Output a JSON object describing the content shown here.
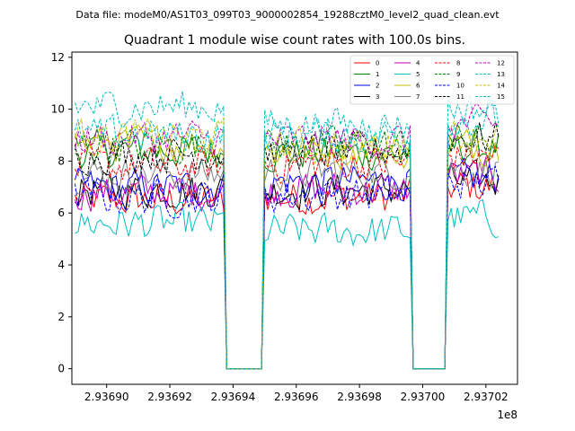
{
  "chart_data": {
    "type": "line",
    "suptitle": "Data file: modeM0/AS1T03_099T03_9000002854_19288cztM0_level2_quad_clean.evt",
    "title": "Quadrant 1 module wise count rates with 100.0s bins.",
    "xlabel": "",
    "ylabel": "",
    "x_offset_label": "1e8",
    "xlim": [
      2.936889,
      2.93703
    ],
    "ylim": [
      -0.6,
      12.2
    ],
    "xticks": [
      2.9369,
      2.93692,
      2.93694,
      2.93696,
      2.93698,
      2.937,
      2.93702
    ],
    "xtick_labels": [
      "2.93690",
      "2.93692",
      "2.93694",
      "2.93696",
      "2.93698",
      "2.93700",
      "2.93702"
    ],
    "yticks": [
      0,
      2,
      4,
      6,
      8,
      10,
      12
    ],
    "ytick_labels": [
      "0",
      "2",
      "4",
      "6",
      "8",
      "10",
      "12"
    ],
    "grid": false,
    "legend_position": "upper right",
    "legend_columns": 4,
    "bin_width_x": 1e-06,
    "segments": [
      {
        "x_start": 2.93689,
        "x_end": 2.936937
      },
      {
        "x_start": 2.93695,
        "x_end": 2.936996
      },
      {
        "x_start": 2.937008,
        "x_end": 2.937024
      }
    ],
    "gaps": [
      {
        "x_start": 2.936938,
        "x_end": 2.936949
      },
      {
        "x_start": 2.936997,
        "x_end": 2.937007
      }
    ],
    "series": [
      {
        "name": "0",
        "color": "#ff0000",
        "dash": "solid",
        "level": [
          6.5,
          6.6,
          7.0
        ]
      },
      {
        "name": "1",
        "color": "#008000",
        "dash": "solid",
        "level": [
          8.4,
          8.3,
          8.5
        ]
      },
      {
        "name": "2",
        "color": "#0000ff",
        "dash": "solid",
        "level": [
          7.0,
          7.2,
          7.3
        ]
      },
      {
        "name": "3",
        "color": "#000000",
        "dash": "solid",
        "level": [
          6.9,
          6.9,
          7.2
        ]
      },
      {
        "name": "4",
        "color": "#bf00bf",
        "dash": "solid",
        "level": [
          6.8,
          6.9,
          7.4
        ]
      },
      {
        "name": "5",
        "color": "#00bfbf",
        "dash": "solid",
        "level": [
          5.6,
          5.3,
          5.8
        ]
      },
      {
        "name": "6",
        "color": "#bfbf00",
        "dash": "solid",
        "level": [
          8.7,
          8.4,
          8.6
        ]
      },
      {
        "name": "7",
        "color": "#808080",
        "dash": "solid",
        "level": [
          7.5,
          7.6,
          7.7
        ]
      },
      {
        "name": "8",
        "color": "#ff0000",
        "dash": "dashed",
        "level": [
          7.8,
          7.9,
          8.2
        ]
      },
      {
        "name": "9",
        "color": "#008000",
        "dash": "dashed",
        "level": [
          8.6,
          8.6,
          8.8
        ]
      },
      {
        "name": "10",
        "color": "#0000ff",
        "dash": "dashed",
        "level": [
          6.6,
          6.7,
          7.2
        ]
      },
      {
        "name": "11",
        "color": "#000000",
        "dash": "dashed",
        "level": [
          8.3,
          8.4,
          8.9
        ]
      },
      {
        "name": "12",
        "color": "#bf00bf",
        "dash": "dashed",
        "level": [
          8.9,
          8.8,
          9.4
        ]
      },
      {
        "name": "13",
        "color": "#00bfbf",
        "dash": "dashed",
        "level": [
          10.1,
          9.4,
          10.0
        ]
      },
      {
        "name": "14",
        "color": "#bfbf00",
        "dash": "dashed",
        "level": [
          8.9,
          8.6,
          9.0
        ]
      },
      {
        "name": "15",
        "color": "#00bfbf",
        "dash": "dashed",
        "level": [
          9.0,
          9.0,
          9.6
        ]
      }
    ]
  }
}
